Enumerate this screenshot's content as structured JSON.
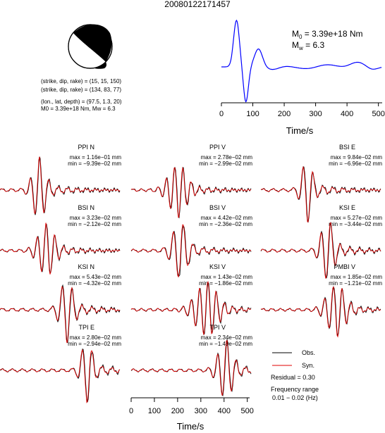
{
  "event_id": "20080122171457",
  "source_info": {
    "plane1": "(strike, dip, rake) = (15, 15, 150)",
    "plane2": "(strike, dip, rake) = (134, 83, 77)",
    "location": "(lon., lat, depth) = (97.5, 1.3, 20)",
    "m0_mw": "M0 = 3.39e+18 Nm, Mw = 6.3"
  },
  "moment_rate": {
    "m0_label": "M",
    "m0_sub": "0",
    "m0_value": " = 3.39e+18 Nm",
    "mw_label": "M",
    "mw_sub": "w",
    "mw_value": " = 6.3",
    "xlabel": "Time/s",
    "xticks": [
      0,
      100,
      200,
      300,
      400,
      500
    ],
    "color": "#0000ff"
  },
  "waveforms": [
    {
      "station": "PPI N",
      "max": "max = 1.16e−01 mm",
      "min": "min = −9.39e−02 mm"
    },
    {
      "station": "PPI V",
      "max": "max = 2.78e−02 mm",
      "min": "min = −2.99e−02 mm"
    },
    {
      "station": "BSI E",
      "max": "max = 9.84e−02 mm",
      "min": "min = −6.96e−02 mm"
    },
    {
      "station": "BSI N",
      "max": "max = 3.23e−02 mm",
      "min": "min = −2.12e−02 mm"
    },
    {
      "station": "BSI V",
      "max": "max = 4.42e−02 mm",
      "min": "min = −2.36e−02 mm"
    },
    {
      "station": "KSI E",
      "max": "max = 5.27e−02 mm",
      "min": "min = −3.44e−02 mm"
    },
    {
      "station": "KSI N",
      "max": "max = 5.43e−02 mm",
      "min": "min = −4.32e−02 mm"
    },
    {
      "station": "KSI V",
      "max": "max = 1.43e−02 mm",
      "min": "min = −1.86e−02 mm"
    },
    {
      "station": "PMBI V",
      "max": "max = 1.85e−02 mm",
      "min": "min = −1.21e−02 mm"
    },
    {
      "station": "TPI E",
      "max": "max = 2.80e−02 mm",
      "min": "min = −2.94e−02 mm"
    },
    {
      "station": "TPI V",
      "max": "max = 2.34e−02 mm",
      "min": "min = −1.49e−02 mm"
    }
  ],
  "legend": {
    "obs": "Obs.",
    "syn": "Syn.",
    "obs_color": "#000000",
    "syn_color": "#e00000",
    "residual": "Residual = 0.30",
    "freq_label": "Frequency range",
    "freq_value": "0.01 − 0.02 (Hz)"
  },
  "bottom_axis": {
    "xlabel": "Time/s",
    "xticks": [
      0,
      100,
      200,
      300,
      400,
      500
    ]
  }
}
